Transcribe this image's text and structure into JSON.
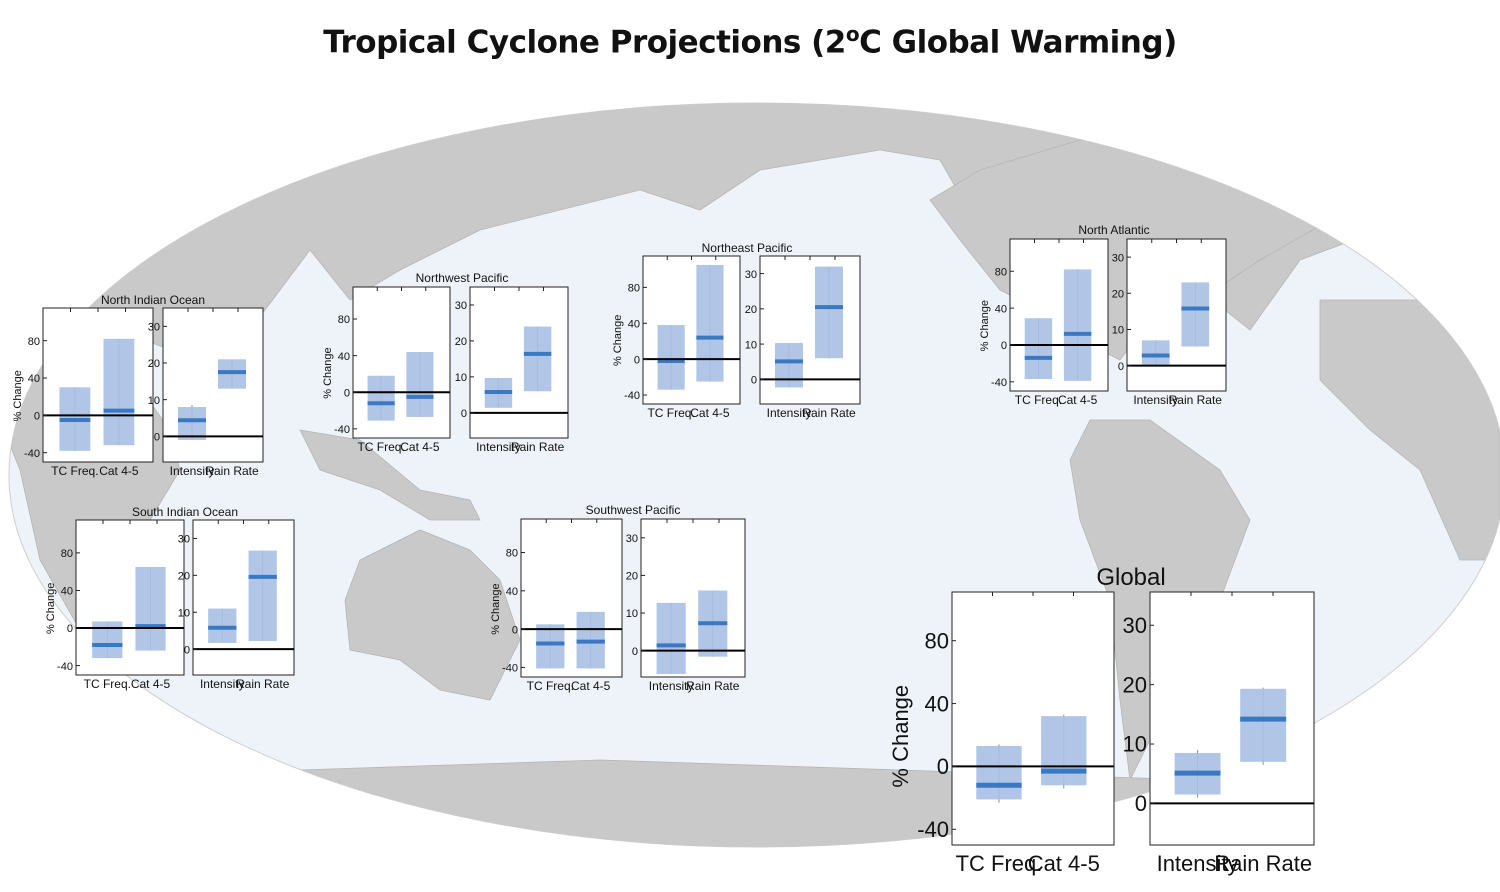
{
  "title": {
    "prefix": "Tropical Cyclone Projections (2",
    "degree": "o",
    "suffix": "C Global Warming)"
  },
  "colors": {
    "box_fill": "#a9c0e4",
    "median": "#3b78c2",
    "whisker": "#7f8fa8",
    "zero_line": "#000000",
    "land": "#c9c9c9",
    "ocean": "#eef3f9"
  },
  "chart_data": [
    {
      "type": "boxplot",
      "title": "North Indian Ocean",
      "ylabel": "% Change",
      "left": {
        "categories": [
          "TC Freq.",
          "Cat 4-5"
        ],
        "yticks": [
          -40,
          0,
          40,
          80
        ],
        "ylim": [
          -50,
          115
        ],
        "boxes": [
          {
            "low": -38,
            "q_low": -38,
            "median": -5,
            "q_high": 30,
            "high": 30
          },
          {
            "low": -32,
            "q_low": -32,
            "median": 5,
            "q_high": 82,
            "high": 82
          }
        ]
      },
      "right": {
        "categories": [
          "Intensity",
          "Rain Rate"
        ],
        "yticks": [
          0,
          10,
          20,
          30
        ],
        "ylim": [
          -7,
          35
        ],
        "boxes": [
          {
            "low": -1,
            "q_low": -1,
            "median": 4.4,
            "q_high": 8,
            "high": 8.5
          },
          {
            "low": 13,
            "q_low": 13,
            "median": 17.5,
            "q_high": 21,
            "high": 21
          }
        ]
      }
    },
    {
      "type": "boxplot",
      "title": "Northwest Pacific",
      "ylabel": "% Change",
      "left": {
        "categories": [
          "TC Freq.",
          "Cat 4-5"
        ],
        "yticks": [
          -40,
          0,
          40,
          80
        ],
        "ylim": [
          -50,
          115
        ],
        "boxes": [
          {
            "low": -31,
            "q_low": -31,
            "median": -12,
            "q_high": 18,
            "high": 18
          },
          {
            "low": -27,
            "q_low": -27,
            "median": -5,
            "q_high": 44,
            "high": 44
          }
        ]
      },
      "right": {
        "categories": [
          "Intensity",
          "Rain Rate"
        ],
        "yticks": [
          0,
          10,
          20,
          30
        ],
        "ylim": [
          -7,
          35
        ],
        "boxes": [
          {
            "low": 1.4,
            "q_low": 1.4,
            "median": 5.8,
            "q_high": 9.7,
            "high": 9.7
          },
          {
            "low": 6,
            "q_low": 6,
            "median": 16.4,
            "q_high": 24,
            "high": 24
          }
        ]
      }
    },
    {
      "type": "boxplot",
      "title": "Northeast Pacific",
      "ylabel": "% Change",
      "left": {
        "categories": [
          "TC Freq.",
          "Cat 4-5"
        ],
        "yticks": [
          -40,
          0,
          40,
          80
        ],
        "ylim": [
          -50,
          115
        ],
        "boxes": [
          {
            "low": -34,
            "q_low": -34,
            "median": -2,
            "q_high": 38,
            "high": 38
          },
          {
            "low": -25,
            "q_low": -25,
            "median": 24,
            "q_high": 105,
            "high": 105
          }
        ]
      },
      "right": {
        "categories": [
          "Intensity",
          "Rain Rate"
        ],
        "yticks": [
          0,
          10,
          20,
          30
        ],
        "ylim": [
          -7,
          35
        ],
        "boxes": [
          {
            "low": -2.3,
            "q_low": -2.3,
            "median": 5.1,
            "q_high": 10.3,
            "high": 10.3
          },
          {
            "low": 6,
            "q_low": 6,
            "median": 20.5,
            "q_high": 32,
            "high": 32
          }
        ]
      }
    },
    {
      "type": "boxplot",
      "title": "North Atlantic",
      "ylabel": "% Change",
      "left": {
        "categories": [
          "TC Freq.",
          "Cat 4-5"
        ],
        "yticks": [
          -40,
          0,
          40,
          80
        ],
        "ylim": [
          -50,
          115
        ],
        "boxes": [
          {
            "low": -37,
            "q_low": -37,
            "median": -14,
            "q_high": 29,
            "high": 29
          },
          {
            "low": -39,
            "q_low": -39,
            "median": 12,
            "q_high": 82,
            "high": 82
          }
        ]
      },
      "right": {
        "categories": [
          "Intensity",
          "Rain Rate"
        ],
        "yticks": [
          0,
          10,
          20,
          30
        ],
        "ylim": [
          -7,
          35
        ],
        "boxes": [
          {
            "low": 0.3,
            "q_low": 0.3,
            "median": 2.8,
            "q_high": 7,
            "high": 7
          },
          {
            "low": 5.3,
            "q_low": 5.3,
            "median": 15.8,
            "q_high": 23,
            "high": 23
          }
        ]
      }
    },
    {
      "type": "boxplot",
      "title": "South Indian Ocean",
      "ylabel": "% Change",
      "left": {
        "categories": [
          "TC Freq.",
          "Cat 4-5"
        ],
        "yticks": [
          -40,
          0,
          40,
          80
        ],
        "ylim": [
          -50,
          115
        ],
        "boxes": [
          {
            "low": -32,
            "q_low": -32,
            "median": -18,
            "q_high": 7,
            "high": 7
          },
          {
            "low": -24,
            "q_low": -24,
            "median": 2,
            "q_high": 65,
            "high": 65
          }
        ]
      },
      "right": {
        "categories": [
          "Intensity",
          "Rain Rate"
        ],
        "yticks": [
          0,
          10,
          20,
          30
        ],
        "ylim": [
          -7,
          35
        ],
        "boxes": [
          {
            "low": 1.7,
            "q_low": 1.7,
            "median": 5.8,
            "q_high": 11,
            "high": 11
          },
          {
            "low": 2.2,
            "q_low": 2.2,
            "median": 19.6,
            "q_high": 26.7,
            "high": 26.7
          }
        ]
      }
    },
    {
      "type": "boxplot",
      "title": "Southwest Pacific",
      "ylabel": "% Change",
      "left": {
        "categories": [
          "TC Freq.",
          "Cat 4-5"
        ],
        "yticks": [
          -40,
          0,
          40,
          80
        ],
        "ylim": [
          -50,
          115
        ],
        "boxes": [
          {
            "low": -41,
            "q_low": -41,
            "median": -15,
            "q_high": 5,
            "high": 5
          },
          {
            "low": -41,
            "q_low": -41,
            "median": -13,
            "q_high": 18,
            "high": 18
          }
        ]
      },
      "right": {
        "categories": [
          "Intensity",
          "Rain Rate"
        ],
        "yticks": [
          0,
          10,
          20,
          30
        ],
        "ylim": [
          -7,
          35
        ],
        "boxes": [
          {
            "low": -6.2,
            "q_low": -6.2,
            "median": 1.4,
            "q_high": 12.7,
            "high": 12.7
          },
          {
            "low": -1.6,
            "q_low": -1.6,
            "median": 7.3,
            "q_high": 16,
            "high": 16
          }
        ]
      }
    },
    {
      "type": "boxplot",
      "title": "Global",
      "ylabel": "% Change",
      "left": {
        "categories": [
          "TC Freq.",
          "Cat 4-5"
        ],
        "yticks": [
          -40,
          0,
          40,
          80
        ],
        "ylim": [
          -50,
          111
        ],
        "boxes": [
          {
            "low": -23,
            "q_low": -21,
            "median": -12,
            "q_high": 13,
            "high": 14
          },
          {
            "low": -14,
            "q_low": -12,
            "median": -3,
            "q_high": 32,
            "high": 33
          }
        ]
      },
      "right": {
        "categories": [
          "Intensity",
          "Rain Rate"
        ],
        "yticks": [
          0,
          10,
          20,
          30
        ],
        "ylim": [
          -7,
          35.6
        ],
        "boxes": [
          {
            "low": 1,
            "q_low": 1.5,
            "median": 5.1,
            "q_high": 8.5,
            "high": 9
          },
          {
            "low": 6.5,
            "q_low": 7,
            "median": 14.2,
            "q_high": 19.3,
            "high": 19.5
          }
        ]
      }
    }
  ]
}
